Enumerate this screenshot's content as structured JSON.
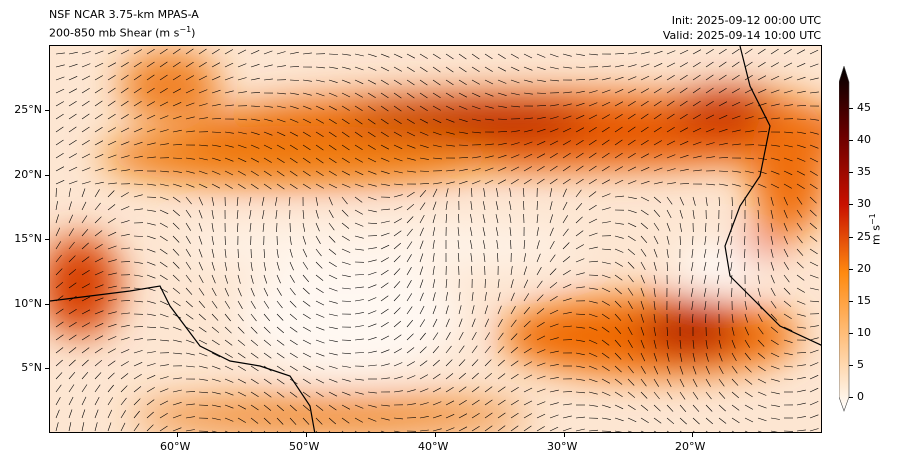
{
  "title": {
    "model": "NSF NCAR 3.75-km MPAS-A",
    "field": "200-850 mb Shear (m s",
    "field_sup": "−1",
    "field_end": ")",
    "init": "Init: 2025-09-12 00:00 UTC",
    "valid": "Valid: 2025-09-14 10:00 UTC"
  },
  "lat_ticks": [
    "25°N",
    "20°N",
    "15°N",
    "10°N",
    "5°N"
  ],
  "lon_ticks": [
    "60°W",
    "50°W",
    "40°W",
    "30°W",
    "20°W"
  ],
  "colorbar": {
    "label": "m s",
    "label_sup": "−1",
    "ticks": [
      "0",
      "5",
      "10",
      "15",
      "20",
      "25",
      "30",
      "35",
      "40",
      "45"
    ],
    "min": 0,
    "max": 50
  },
  "colors": {
    "low": "#ffffff",
    "mid": "#ff7f00",
    "high": "#8b0000",
    "max": "#000000"
  }
}
